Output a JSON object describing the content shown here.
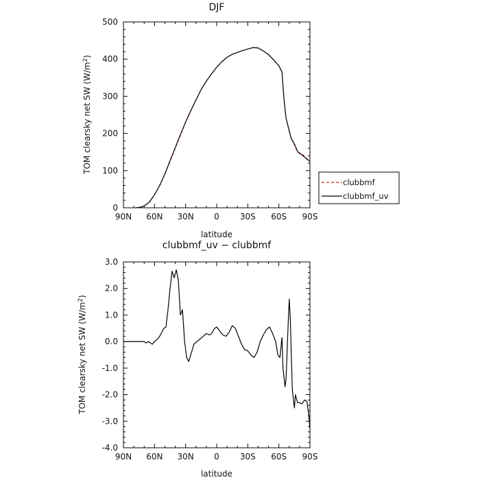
{
  "chart_data": [
    {
      "type": "line",
      "title": "DJF",
      "xlabel": "latitude",
      "ylabel": "TOM clearsky net SW (W/m",
      "ylabel_sup": "2",
      "ylabel_end": ")",
      "xlim": [
        90,
        -90
      ],
      "ylim": [
        0,
        500
      ],
      "x_ticks": [
        90,
        60,
        30,
        0,
        -30,
        -60,
        -90
      ],
      "x_tick_labels": [
        "90N",
        "60N",
        "30N",
        "0",
        "30S",
        "60S",
        "90S"
      ],
      "y_ticks": [
        0,
        100,
        200,
        300,
        400,
        500
      ],
      "y_tick_labels": [
        "0",
        "100",
        "200",
        "300",
        "400",
        "500"
      ],
      "legend": {
        "placement": "right"
      },
      "series": [
        {
          "name": "clubbmf",
          "color": "#cc2222",
          "style": "dashed",
          "x": [
            78,
            75,
            72,
            70,
            65,
            60,
            55,
            50,
            45,
            40,
            35,
            30,
            25,
            20,
            15,
            10,
            5,
            0,
            -5,
            -10,
            -15,
            -20,
            -25,
            -30,
            -35,
            -40,
            -45,
            -50,
            -55,
            -60,
            -63,
            -65,
            -67,
            -70,
            -72,
            -75,
            -78,
            -80,
            -82,
            -85,
            -87,
            -90
          ],
          "values": [
            0,
            1,
            3,
            5,
            15,
            35,
            60,
            90,
            125,
            160,
            195,
            230,
            260,
            290,
            318,
            340,
            360,
            378,
            393,
            405,
            413,
            418,
            423,
            427,
            431,
            430,
            422,
            412,
            398,
            382,
            365,
            290,
            240,
            205,
            185,
            170,
            150,
            148,
            145,
            138,
            132,
            128
          ]
        },
        {
          "name": "clubbmf_uv",
          "color": "#000000",
          "style": "solid",
          "x": [
            78,
            75,
            72,
            70,
            65,
            60,
            55,
            50,
            45,
            40,
            35,
            30,
            25,
            20,
            15,
            10,
            5,
            0,
            -5,
            -10,
            -15,
            -20,
            -25,
            -30,
            -35,
            -40,
            -45,
            -50,
            -55,
            -60,
            -63,
            -65,
            -67,
            -70,
            -72,
            -75,
            -78,
            -80,
            -82,
            -85,
            -87,
            -90
          ],
          "values": [
            0,
            1,
            3,
            5,
            15,
            35,
            60,
            91,
            127,
            162,
            197,
            231,
            261,
            290,
            318,
            341,
            360,
            378,
            393,
            405,
            413,
            418,
            423,
            427,
            431,
            430,
            422,
            412,
            398,
            382,
            366,
            291,
            241,
            207,
            186,
            172,
            152,
            146,
            143,
            136,
            131,
            125
          ]
        }
      ]
    },
    {
      "type": "line",
      "title": "clubbmf_uv − clubbmf",
      "xlabel": "latitude",
      "ylabel": "TOM clearsky net SW (W/m",
      "ylabel_sup": "2",
      "ylabel_end": ")",
      "xlim": [
        90,
        -90
      ],
      "ylim": [
        -4.0,
        3.0
      ],
      "x_ticks": [
        90,
        60,
        30,
        0,
        -30,
        -60,
        -90
      ],
      "x_tick_labels": [
        "90N",
        "60N",
        "30N",
        "0",
        "30S",
        "60S",
        "90S"
      ],
      "y_ticks": [
        -4,
        -3,
        -2,
        -1,
        0,
        1,
        2,
        3
      ],
      "y_tick_labels": [
        "-4.0",
        "-3.0",
        "-2.0",
        "-1.0",
        "0.0",
        "1.0",
        "2.0",
        "3.0"
      ],
      "series": [
        {
          "name": "",
          "color": "#000000",
          "style": "solid",
          "x": [
            90,
            80,
            70,
            68,
            66,
            64,
            62,
            60,
            57,
            55,
            53,
            51,
            49,
            47,
            45,
            43,
            41,
            39,
            37,
            35,
            33,
            31,
            29,
            27,
            25,
            22,
            19,
            16,
            13,
            10,
            7,
            5,
            2,
            0,
            -3,
            -6,
            -9,
            -12,
            -15,
            -18,
            -21,
            -24,
            -27,
            -30,
            -33,
            -36,
            -39,
            -42,
            -45,
            -48,
            -51,
            -54,
            -57,
            -59,
            -61,
            -63,
            -64,
            -66,
            -67,
            -69,
            -70,
            -71,
            -73,
            -75,
            -76,
            -78,
            -80,
            -82,
            -85,
            -87,
            -89,
            -90
          ],
          "values": [
            0.0,
            0.0,
            0.0,
            -0.05,
            0.0,
            -0.05,
            -0.1,
            0.0,
            0.1,
            0.2,
            0.35,
            0.5,
            0.55,
            1.2,
            2.0,
            2.65,
            2.4,
            2.7,
            2.3,
            1.0,
            1.2,
            0.0,
            -0.6,
            -0.75,
            -0.5,
            -0.1,
            0.0,
            0.1,
            0.2,
            0.3,
            0.25,
            0.3,
            0.5,
            0.55,
            0.4,
            0.25,
            0.2,
            0.35,
            0.6,
            0.5,
            0.2,
            -0.1,
            -0.3,
            -0.35,
            -0.5,
            -0.6,
            -0.4,
            0.0,
            0.25,
            0.45,
            0.55,
            0.3,
            0.0,
            -0.5,
            -0.6,
            0.15,
            -1.0,
            -1.7,
            -1.4,
            0.7,
            1.6,
            0.9,
            -1.8,
            -2.5,
            -2.0,
            -2.3,
            -2.3,
            -2.35,
            -2.2,
            -2.25,
            -2.8,
            -3.3
          ]
        }
      ]
    }
  ]
}
